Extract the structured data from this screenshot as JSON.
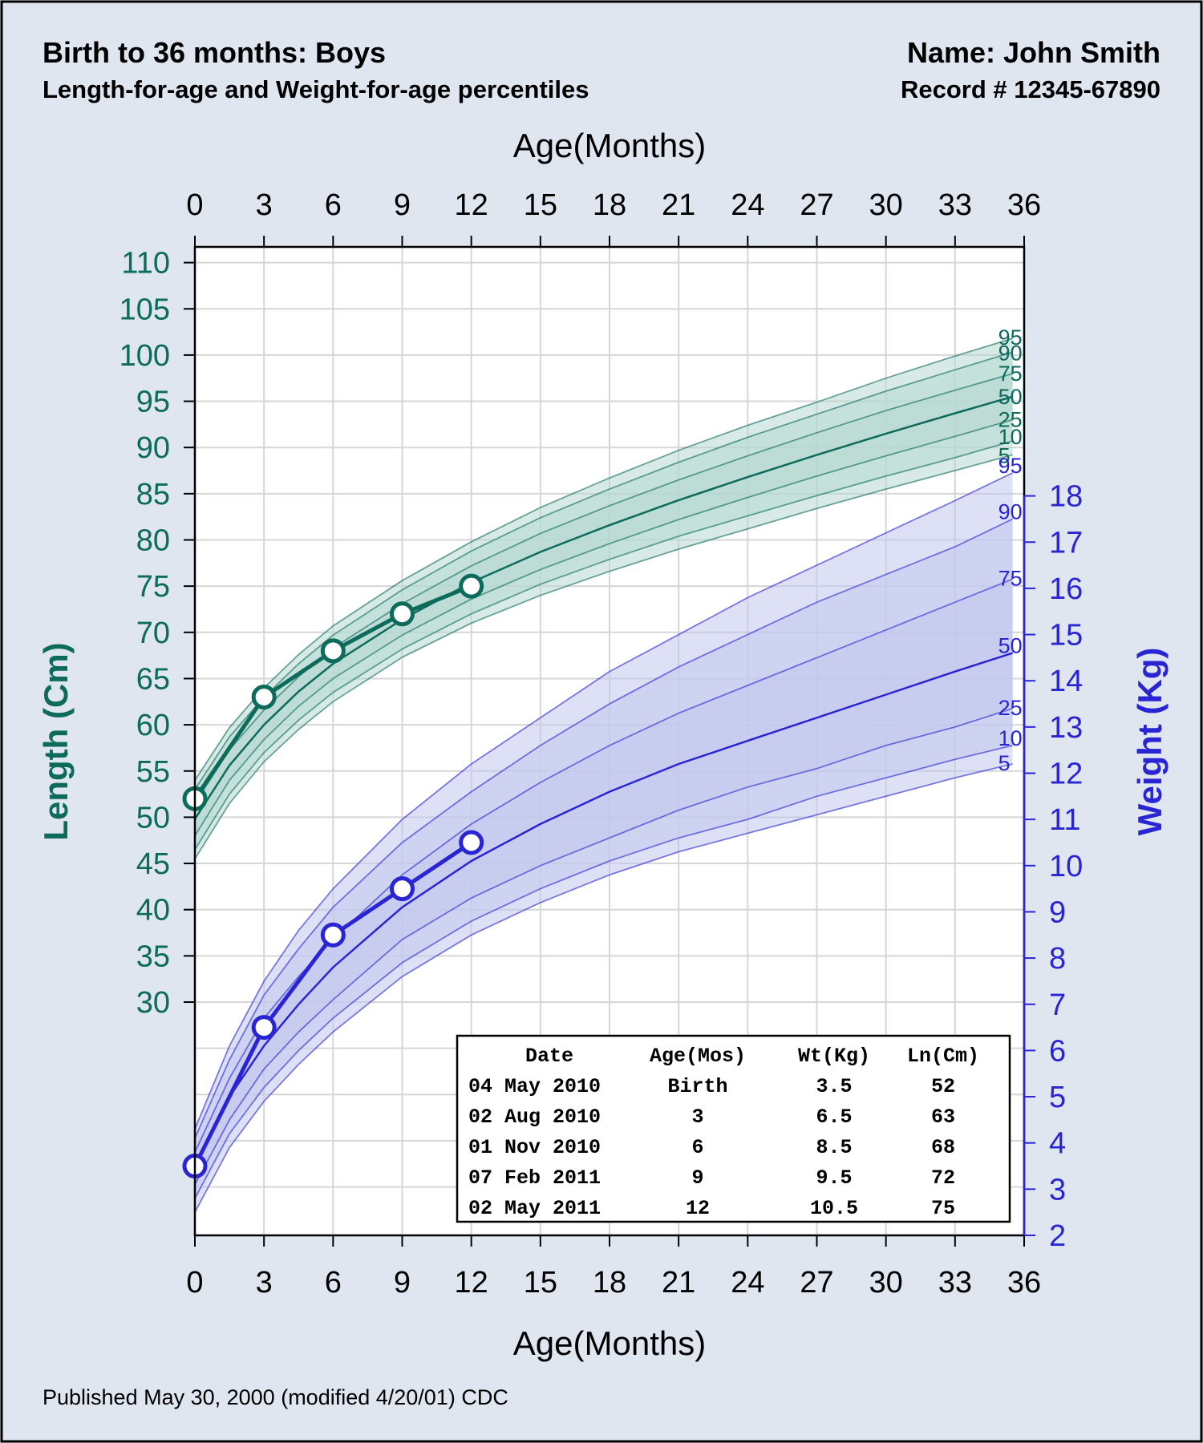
{
  "header": {
    "title": "Birth to 36 months: Boys",
    "subtitle": "Length-for-age and Weight-for-age percentiles",
    "name": "Name:  John Smith",
    "record": "Record # 12345-67890"
  },
  "footer": "Published May 30, 2000 (modified 4/20/01) CDC",
  "colors": {
    "background": "#dfe6ef",
    "length": "#0d6b5c",
    "length_band": "#d7ebe6",
    "weight": "#2a25d4",
    "weight_band": "#dde0f6"
  },
  "chart_data": {
    "type": "line",
    "xlabel": "Age(Months)",
    "xlim": [
      0,
      36
    ],
    "xticks": [
      0,
      3,
      6,
      9,
      12,
      15,
      18,
      21,
      24,
      27,
      30,
      33,
      36
    ],
    "left_axis": {
      "label": "Length (Cm)",
      "ticks": [
        30,
        35,
        40,
        45,
        50,
        55,
        60,
        65,
        70,
        75,
        80,
        85,
        90,
        95,
        100,
        105,
        110
      ]
    },
    "right_axis": {
      "label": "Weight (Kg)",
      "ticks": [
        2,
        3,
        4,
        5,
        6,
        7,
        8,
        9,
        10,
        11,
        12,
        13,
        14,
        15,
        16,
        17,
        18
      ]
    },
    "grid": true,
    "percentile_ages": [
      0,
      1.5,
      3,
      4.5,
      6,
      9,
      12,
      15,
      18,
      21,
      24,
      27,
      30,
      33,
      35.5
    ],
    "length_percentiles": [
      {
        "name": "5",
        "values": [
          45.5,
          51.5,
          56.0,
          59.5,
          62.5,
          67.3,
          71.0,
          74.0,
          76.6,
          79.0,
          81.2,
          83.4,
          85.5,
          87.5,
          89.2
        ]
      },
      {
        "name": "10",
        "values": [
          46.5,
          52.5,
          57.0,
          60.5,
          63.5,
          68.2,
          72.0,
          75.2,
          77.9,
          80.4,
          82.6,
          84.8,
          86.9,
          88.9,
          90.7
        ]
      },
      {
        "name": "25",
        "values": [
          48.0,
          54.0,
          58.4,
          62.0,
          65.0,
          69.7,
          73.6,
          76.8,
          79.6,
          82.2,
          84.6,
          86.9,
          89.1,
          91.2,
          93.0
        ]
      },
      {
        "name": "50",
        "values": [
          49.8,
          55.6,
          60.0,
          63.6,
          66.6,
          71.4,
          75.4,
          78.7,
          81.6,
          84.3,
          86.8,
          89.2,
          91.5,
          93.7,
          95.5
        ]
      },
      {
        "name": "75",
        "values": [
          51.5,
          57.3,
          61.6,
          65.2,
          68.3,
          73.1,
          77.2,
          80.7,
          83.7,
          86.5,
          89.1,
          91.6,
          94.0,
          96.2,
          98.0
        ]
      },
      {
        "name": "90",
        "values": [
          53.0,
          58.7,
          63.0,
          66.6,
          69.7,
          74.6,
          78.8,
          82.4,
          85.5,
          88.4,
          91.1,
          93.6,
          96.1,
          98.4,
          100.3
        ]
      },
      {
        "name": "95",
        "values": [
          54.0,
          59.7,
          64.0,
          67.6,
          70.7,
          75.6,
          79.8,
          83.5,
          86.7,
          89.7,
          92.4,
          94.9,
          97.5,
          99.9,
          101.8
        ]
      }
    ],
    "weight_percentiles": [
      {
        "name": "5",
        "values": [
          2.5,
          3.9,
          4.9,
          5.7,
          6.4,
          7.6,
          8.5,
          9.2,
          9.8,
          10.3,
          10.7,
          11.1,
          11.5,
          11.9,
          12.2
        ]
      },
      {
        "name": "10",
        "values": [
          2.8,
          4.2,
          5.2,
          6.0,
          6.7,
          7.9,
          8.8,
          9.5,
          10.1,
          10.6,
          11.0,
          11.5,
          11.9,
          12.3,
          12.6
        ]
      },
      {
        "name": "25",
        "values": [
          3.1,
          4.5,
          5.6,
          6.4,
          7.1,
          8.4,
          9.3,
          10.0,
          10.6,
          11.2,
          11.7,
          12.1,
          12.6,
          13.0,
          13.4
        ]
      },
      {
        "name": "50",
        "values": [
          3.5,
          5.0,
          6.1,
          7.0,
          7.8,
          9.1,
          10.1,
          10.9,
          11.6,
          12.2,
          12.7,
          13.2,
          13.7,
          14.2,
          14.6
        ]
      },
      {
        "name": "75",
        "values": [
          3.8,
          5.4,
          6.7,
          7.6,
          8.4,
          9.8,
          10.9,
          11.8,
          12.6,
          13.3,
          13.9,
          14.5,
          15.1,
          15.7,
          16.2
        ]
      },
      {
        "name": "90",
        "values": [
          4.1,
          5.8,
          7.2,
          8.2,
          9.1,
          10.5,
          11.6,
          12.6,
          13.5,
          14.3,
          15.0,
          15.7,
          16.3,
          16.9,
          17.5
        ]
      },
      {
        "name": "95",
        "values": [
          4.3,
          6.1,
          7.5,
          8.6,
          9.5,
          11.0,
          12.2,
          13.2,
          14.2,
          15.0,
          15.8,
          16.5,
          17.2,
          17.9,
          18.5
        ]
      }
    ],
    "patient": {
      "ages": [
        0,
        3,
        6,
        9,
        12
      ],
      "length_cm": [
        52,
        63,
        68,
        72,
        75
      ],
      "weight_kg": [
        3.5,
        6.5,
        8.5,
        9.5,
        10.5
      ]
    }
  },
  "table": {
    "headers": [
      "Date",
      "Age(Mos)",
      "Wt(Kg)",
      "Ln(Cm)"
    ],
    "rows": [
      [
        "04 May 2010",
        "Birth",
        "3.5",
        "52"
      ],
      [
        "02 Aug 2010",
        "3",
        "6.5",
        "63"
      ],
      [
        "01 Nov 2010",
        "6",
        "8.5",
        "68"
      ],
      [
        "07 Feb 2011",
        "9",
        "9.5",
        "72"
      ],
      [
        "02 May 2011",
        "12",
        "10.5",
        "75"
      ]
    ]
  }
}
